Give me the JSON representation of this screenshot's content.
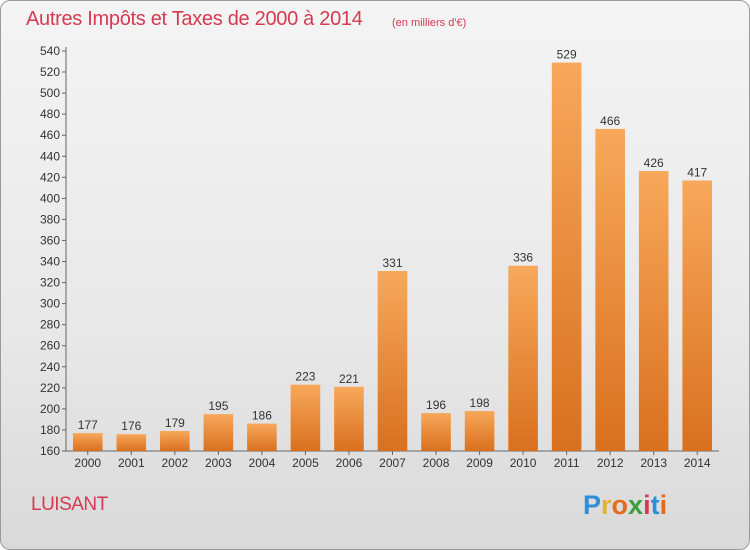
{
  "title": "Autres Impôts et Taxes de 2000 à 2014",
  "subtitle": "(en milliers d'€)",
  "commune": "LUISANT",
  "logo": {
    "letters": [
      "P",
      "r",
      "o",
      "x",
      "i",
      "t",
      "i"
    ],
    "colors": [
      "#2e8fd6",
      "#e0b52a",
      "#e46a1c",
      "#3a9f3c",
      "#d63a52",
      "#2e8fd6",
      "#e46a1c"
    ]
  },
  "colors": {
    "bar_light": "#f7a85a",
    "bar_dark": "#d9701e",
    "title": "#d63a52"
  },
  "chart_data": {
    "type": "bar",
    "categories": [
      "2000",
      "2001",
      "2002",
      "2003",
      "2004",
      "2005",
      "2006",
      "2007",
      "2008",
      "2009",
      "2010",
      "2011",
      "2012",
      "2013",
      "2014"
    ],
    "values": [
      177,
      176,
      179,
      195,
      186,
      223,
      221,
      331,
      196,
      198,
      336,
      529,
      466,
      426,
      417
    ],
    "title": "Autres Impôts et Taxes de 2000 à 2014",
    "ylim": [
      160,
      540
    ],
    "yticks": [
      160,
      180,
      200,
      220,
      240,
      260,
      280,
      300,
      320,
      340,
      360,
      380,
      400,
      420,
      440,
      460,
      480,
      500,
      520,
      540
    ],
    "grid": false
  }
}
